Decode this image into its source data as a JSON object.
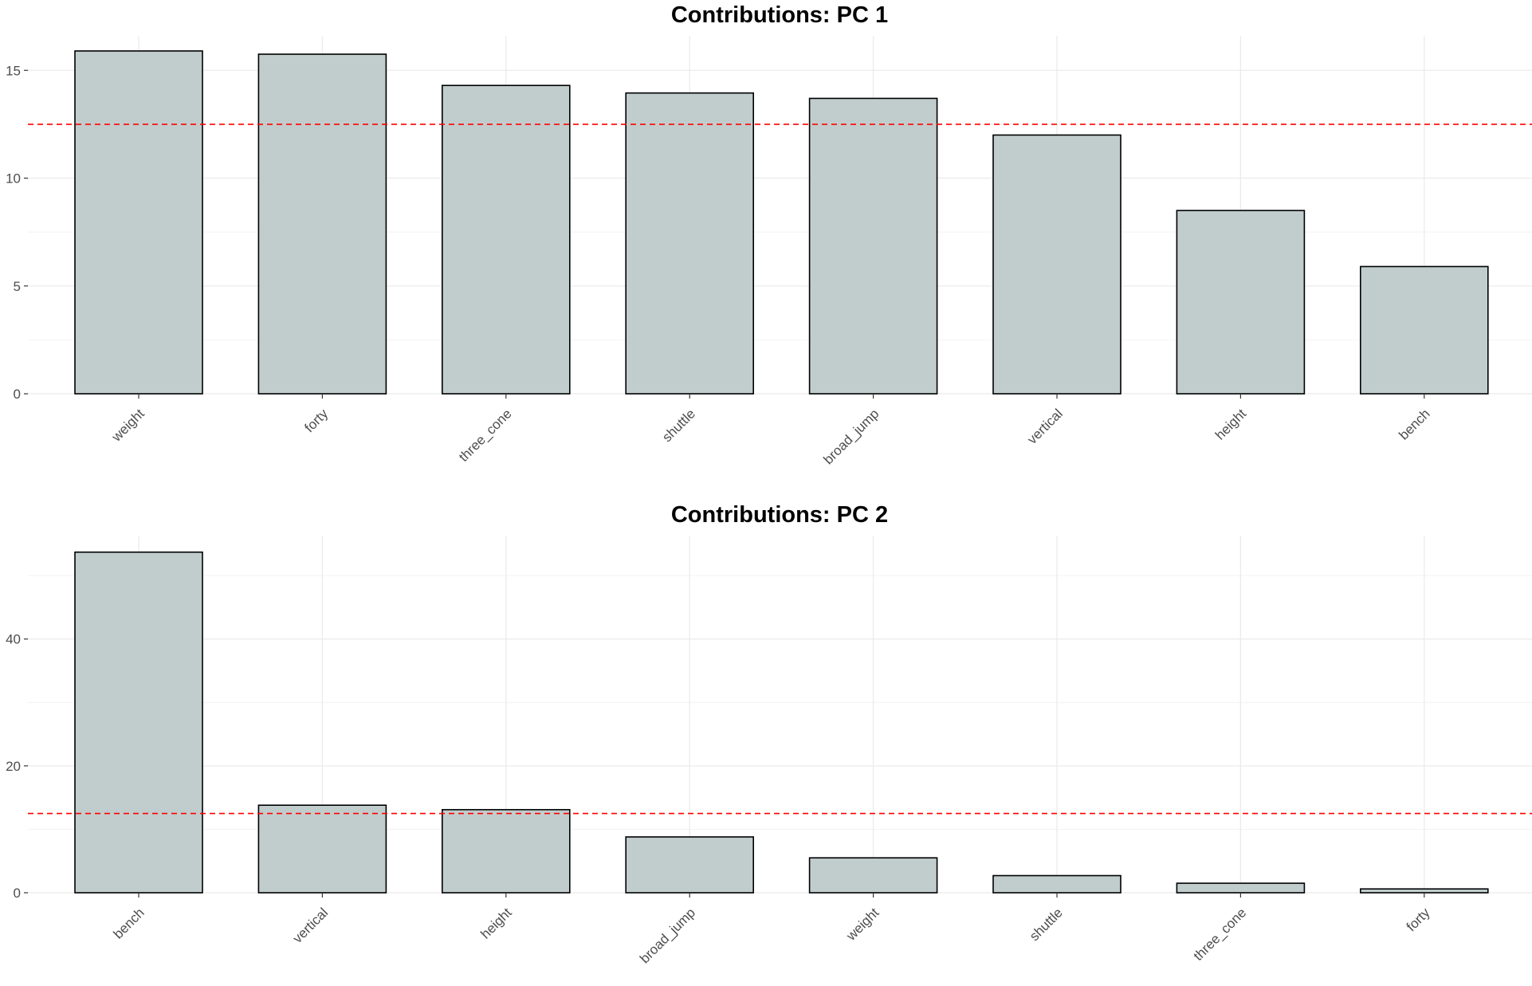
{
  "chart_data": [
    {
      "type": "bar",
      "title": "Contributions: PC 1",
      "categories": [
        "weight",
        "forty",
        "three_cone",
        "shuttle",
        "broad_jump",
        "vertical",
        "height",
        "bench"
      ],
      "values": [
        15.9,
        15.75,
        14.3,
        13.95,
        13.7,
        12.0,
        8.5,
        5.9
      ],
      "reference_line": 12.5,
      "ylim": [
        0,
        16.6
      ],
      "yticks": [
        0,
        5,
        10,
        15
      ],
      "xlabel": "",
      "ylabel": "",
      "grid": true,
      "legend": "none"
    },
    {
      "type": "bar",
      "title": "Contributions: PC 2",
      "categories": [
        "bench",
        "vertical",
        "height",
        "broad_jump",
        "weight",
        "shuttle",
        "three_cone",
        "forty"
      ],
      "values": [
        53.7,
        13.8,
        13.1,
        8.8,
        5.5,
        2.7,
        1.5,
        0.6
      ],
      "reference_line": 12.5,
      "ylim": [
        0,
        56.3
      ],
      "yticks": [
        0,
        20,
        40
      ],
      "xlabel": "",
      "ylabel": "",
      "grid": true,
      "legend": "none"
    }
  ],
  "colors": {
    "bar_fill": "#c1cdcd",
    "bar_outline": "#000000",
    "reference_line": "#ff0000",
    "grid": "#ebebeb"
  }
}
